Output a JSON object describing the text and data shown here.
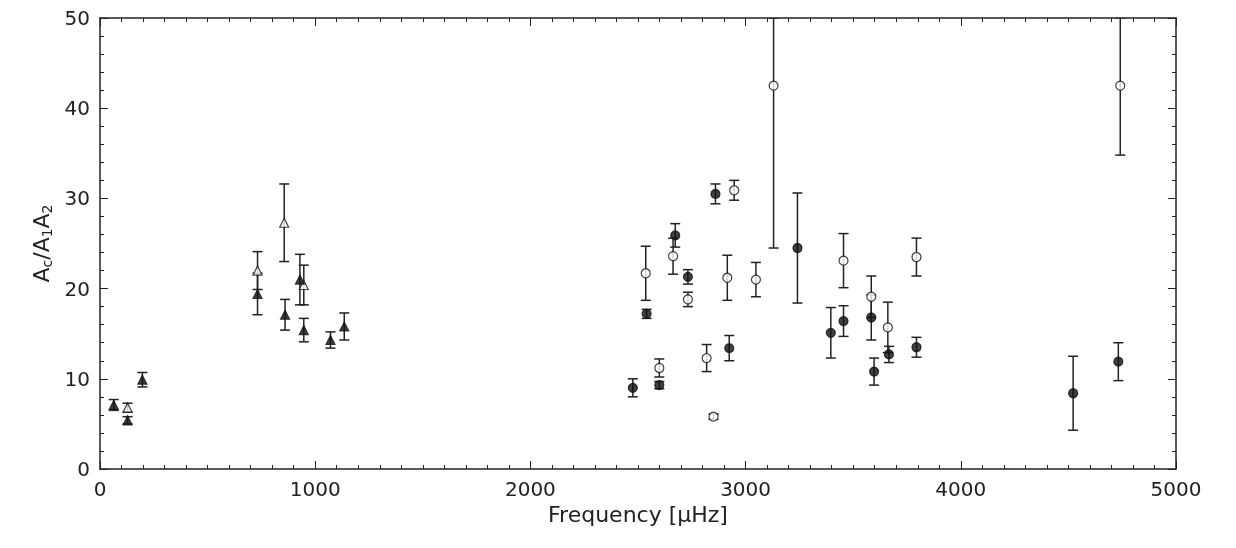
{
  "chart_data": {
    "type": "scatter",
    "xlabel": "Frequency [μHz]",
    "ylabel": "A$_{c}$/A$_{1}$A$_{2}$",
    "xlim": [
      0,
      5000
    ],
    "xticks": [
      0,
      1000,
      2000,
      3000,
      4000,
      5000
    ],
    "ylim": [
      0,
      50
    ],
    "yticks": [
      0,
      10,
      20,
      30,
      40,
      50
    ],
    "grid": false,
    "series": [
      {
        "color": "#ffffff",
        "marker": "triangle",
        "x": [
          128,
          732,
          856,
          947
        ],
        "values": [
          6.8,
          22.0,
          27.3,
          20.4
        ],
        "errors": [
          0.5,
          2.1,
          4.3,
          2.2
        ]
      },
      {
        "color": "#111111",
        "marker": "triangle",
        "x": [
          64,
          128,
          197,
          732,
          860,
          929,
          947,
          1071,
          1135
        ],
        "values": [
          7.1,
          5.4,
          9.9,
          19.4,
          17.1,
          21.0,
          15.4,
          14.3,
          15.8
        ],
        "errors": [
          0.6,
          0.4,
          0.8,
          2.3,
          1.7,
          2.8,
          1.3,
          0.9,
          1.5
        ]
      },
      {
        "color": "#ffffff",
        "marker": "circle",
        "x": [
          2536,
          2599,
          2663,
          2732,
          2819,
          2851,
          2947,
          2915,
          3048,
          3130,
          3455,
          3584,
          3661,
          3794,
          4741
        ],
        "values": [
          21.7,
          11.2,
          23.6,
          18.8,
          12.3,
          5.8,
          30.9,
          21.2,
          21.0,
          42.5,
          23.1,
          19.1,
          15.7,
          23.5,
          42.5
        ],
        "errors": [
          3,
          1,
          2,
          0.8,
          1.5,
          0.3,
          1.1,
          2.5,
          1.9,
          [
            24.5,
            50
          ],
          3,
          2.3,
          2.8,
          2.1,
          [
            34.8,
            50
          ]
        ]
      },
      {
        "color": "#111111",
        "marker": "circle",
        "x": [
          2476,
          2540,
          2599,
          2673,
          2732,
          2860,
          2924,
          3241,
          3396,
          3455,
          3584,
          3597,
          3666,
          3794,
          4522,
          4732
        ],
        "values": [
          9.0,
          17.2,
          9.3,
          25.9,
          21.3,
          30.5,
          13.4,
          24.5,
          15.1,
          16.4,
          16.8,
          10.8,
          12.7,
          13.5,
          8.4,
          11.9
        ],
        "errors": [
          1.0,
          0.5,
          0.4,
          1.3,
          0.8,
          1.1,
          1.4,
          6.1,
          2.8,
          1.7,
          2.5,
          1.5,
          0.9,
          1.1,
          4.1,
          2.1
        ]
      }
    ]
  }
}
